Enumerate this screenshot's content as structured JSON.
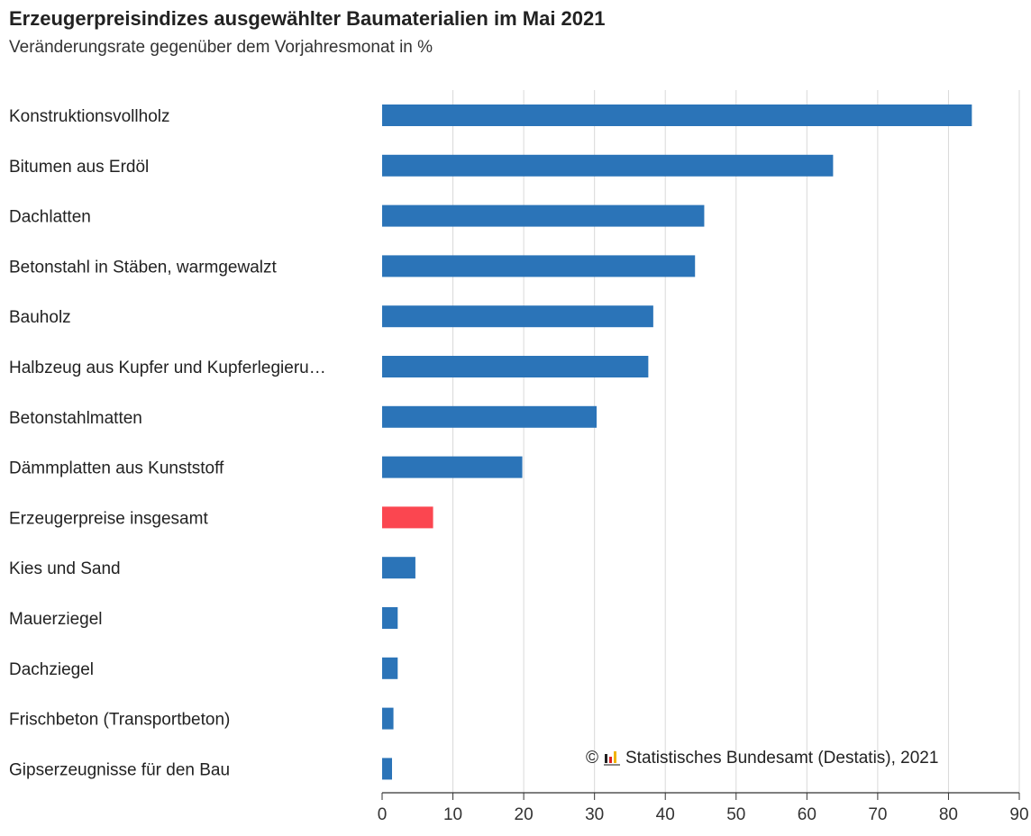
{
  "header": {
    "title": "Erzeugerpreisindizes ausgewählter Baumaterialien im Mai 2021",
    "subtitle": "Veränderungsrate gegenüber dem Vorjahresmonat in %"
  },
  "footer": {
    "copyright_symbol": "©",
    "source": "Statistisches Bundesamt (Destatis), 2021"
  },
  "colors": {
    "bar": "#2b74b8",
    "highlight": "#fb4650",
    "grid": "#d9d9d9",
    "axis": "#333333"
  },
  "chart_data": {
    "type": "bar",
    "orientation": "horizontal",
    "title": "Erzeugerpreisindizes ausgewählter Baumaterialien im Mai 2021",
    "subtitle": "Veränderungsrate gegenüber dem Vorjahresmonat in %",
    "categories": [
      "Konstruktionsvollholz",
      "Bitumen aus Erdöl",
      "Dachlatten",
      "Betonstahl in Stäben, warmgewalzt",
      "Bauholz",
      "Halbzeug aus Kupfer und Kupferlegieru…",
      "Betonstahlmatten",
      "Dämmplatten aus Kunststoff",
      "Erzeugerpreise insgesamt",
      "Kies und Sand",
      "Mauerziegel",
      "Dachziegel",
      "Frischbeton (Transportbeton)",
      "Gipserzeugnisse für den Bau"
    ],
    "values": [
      83.3,
      63.7,
      45.5,
      44.2,
      38.3,
      37.6,
      30.3,
      19.8,
      7.2,
      4.7,
      2.2,
      2.2,
      1.6,
      1.4
    ],
    "highlight_index": 8,
    "xlim": [
      0,
      90
    ],
    "xticks": [
      0,
      10,
      20,
      30,
      40,
      50,
      60,
      70,
      80,
      90
    ],
    "grid": true,
    "legend": "none"
  }
}
